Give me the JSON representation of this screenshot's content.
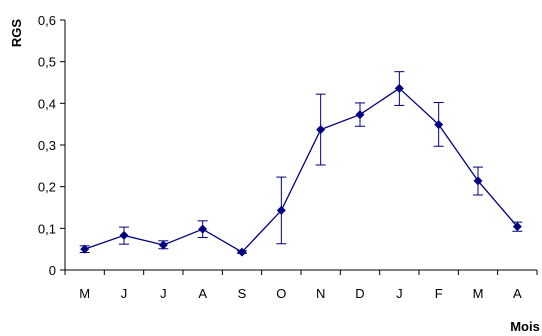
{
  "chart_data": {
    "type": "line",
    "ylabel": "RGS",
    "xlabel": "Mois",
    "categories": [
      "M",
      "J",
      "J",
      "A",
      "S",
      "O",
      "N",
      "D",
      "J",
      "F",
      "M",
      "A"
    ],
    "ylim": [
      0,
      0.6
    ],
    "yticks": [
      0,
      0.1,
      0.2,
      0.3,
      0.4,
      0.5,
      0.6
    ],
    "ytick_labels": [
      "0",
      "0,1",
      "0,2",
      "0,3",
      "0,4",
      "0,5",
      "0,6"
    ],
    "grid": false,
    "legend": "none",
    "series": [
      {
        "values": [
          0.05,
          0.083,
          0.06,
          0.098,
          0.043,
          0.143,
          0.337,
          0.373,
          0.436,
          0.349,
          0.214,
          0.104
        ],
        "error_low": [
          0.042,
          0.062,
          0.051,
          0.078,
          0.04,
          0.063,
          0.252,
          0.345,
          0.395,
          0.297,
          0.18,
          0.093
        ],
        "error_high": [
          0.058,
          0.103,
          0.07,
          0.118,
          0.046,
          0.223,
          0.422,
          0.401,
          0.476,
          0.402,
          0.247,
          0.115
        ],
        "color": "#000080"
      }
    ]
  }
}
